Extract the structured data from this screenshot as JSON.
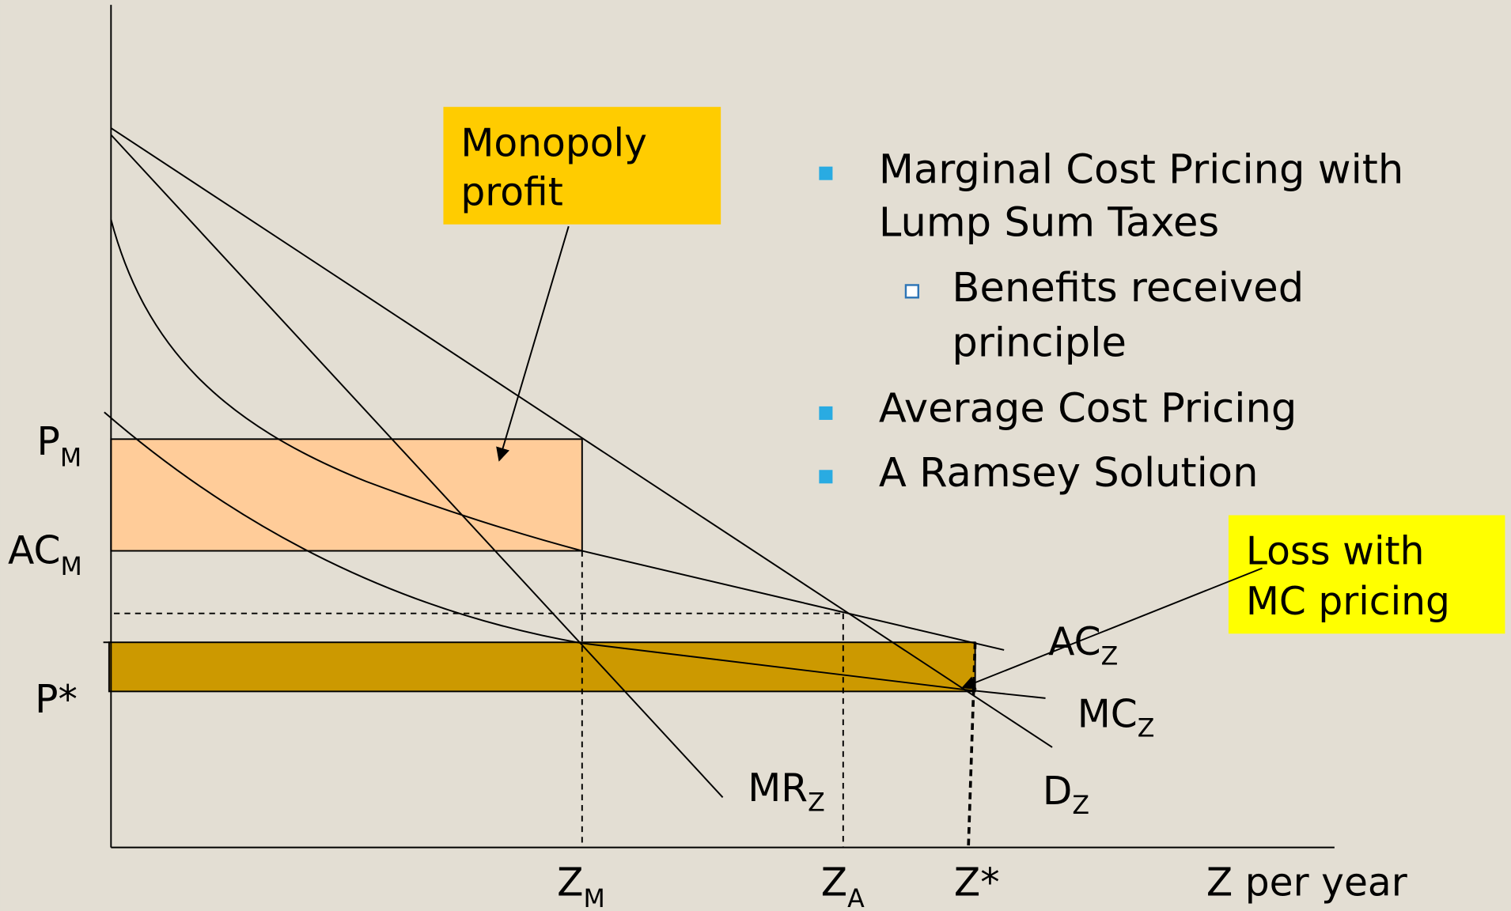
{
  "callouts": {
    "monopoly": {
      "lines": [
        "Monopoly",
        "profit"
      ]
    },
    "loss": {
      "lines": [
        "Loss with",
        "MC pricing"
      ]
    }
  },
  "bullets": [
    {
      "lines": [
        "Marginal Cost Pricing with",
        "Lump Sum Taxes"
      ]
    },
    {
      "lines": [
        "Benefits received",
        "principle"
      ]
    },
    {
      "lines": [
        "Average Cost Pricing"
      ]
    },
    {
      "lines": [
        "A Ramsey Solution"
      ]
    }
  ],
  "y_labels": [
    {
      "base": "P",
      "sub": "M"
    },
    {
      "base": "AC",
      "sub": "M"
    },
    {
      "base": "P*"
    }
  ],
  "x_labels": [
    {
      "base": "Z",
      "sub": "M"
    },
    {
      "base": "Z",
      "sub": "A"
    },
    {
      "base": "Z*"
    },
    {
      "base": "Z per year"
    }
  ],
  "curve_labels": [
    {
      "base": "AC",
      "sub": "Z"
    },
    {
      "base": "MC",
      "sub": "Z"
    },
    {
      "base": "D",
      "sub": "Z"
    },
    {
      "base": "MR",
      "sub": "Z"
    }
  ]
}
